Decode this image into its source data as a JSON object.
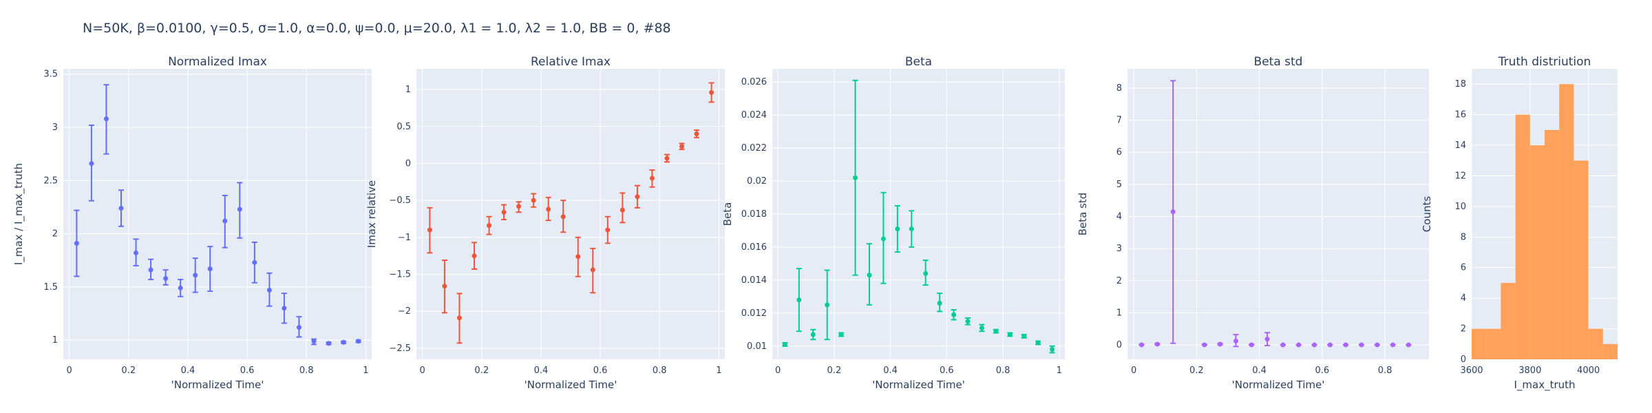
{
  "suptitle": "N=50K, β=0.0100, γ=0.5, σ=1.0,  α=0.0, ψ=0.0, μ=20.0, λ1 = 1.0, λ2 = 1.0, BB = 0, #88",
  "colors": {
    "plot_bg": "#e5ecf6",
    "grid": "#ffffff",
    "text": "#2a3f5f",
    "series1": "#636efa",
    "series2": "#ef553b",
    "series3": "#00cc96",
    "series4": "#ab63fa",
    "hist": "#ffa15a"
  },
  "chart_data": [
    {
      "type": "scatter",
      "title": "Normalized Imax",
      "xlabel": "'Normalized Time'",
      "ylabel": "I_max / I_max_truth",
      "xlim": [
        -0.02,
        1.02
      ],
      "ylim": [
        0.82,
        3.55
      ],
      "xticks": [
        0,
        0.2,
        0.4,
        0.6,
        0.8,
        1
      ],
      "xtick_labels": [
        "0",
        "0.2",
        "0.4",
        "0.6",
        "0.8",
        "1"
      ],
      "yticks": [
        1,
        1.5,
        2,
        2.5,
        3,
        3.5
      ],
      "ytick_labels": [
        "1",
        "1.5",
        "2",
        "2.5",
        "3",
        "3.5"
      ],
      "color_key": "series1",
      "x": [
        0.025,
        0.075,
        0.125,
        0.175,
        0.225,
        0.275,
        0.325,
        0.375,
        0.425,
        0.475,
        0.525,
        0.575,
        0.625,
        0.675,
        0.725,
        0.775,
        0.825,
        0.875,
        0.925,
        0.975
      ],
      "y": [
        1.91,
        2.66,
        3.08,
        2.24,
        1.82,
        1.66,
        1.58,
        1.49,
        1.61,
        1.67,
        2.12,
        2.23,
        1.73,
        1.47,
        1.3,
        1.12,
        0.99,
        0.97,
        0.98,
        0.99
      ],
      "err_low": [
        1.6,
        2.31,
        2.75,
        2.07,
        1.7,
        1.57,
        1.52,
        1.41,
        1.45,
        1.46,
        1.87,
        1.96,
        1.54,
        1.32,
        1.16,
        1.03,
        0.96,
        0.96,
        0.97,
        0.98
      ],
      "err_high": [
        2.22,
        3.02,
        3.4,
        2.41,
        1.95,
        1.76,
        1.66,
        1.57,
        1.77,
        1.88,
        2.36,
        2.48,
        1.92,
        1.63,
        1.44,
        1.22,
        1.01,
        0.98,
        0.99,
        1.0
      ]
    },
    {
      "type": "scatter",
      "title": "Relative Imax",
      "xlabel": "'Normalized Time'",
      "ylabel": "Imax relative",
      "xlim": [
        -0.02,
        1.02
      ],
      "ylim": [
        -2.65,
        1.28
      ],
      "xticks": [
        0,
        0.2,
        0.4,
        0.6,
        0.8,
        1
      ],
      "xtick_labels": [
        "0",
        "0.2",
        "0.4",
        "0.6",
        "0.8",
        "1"
      ],
      "yticks": [
        -2.5,
        -2,
        -1.5,
        -1,
        -0.5,
        0,
        0.5,
        1
      ],
      "ytick_labels": [
        "−2.5",
        "−2",
        "−1.5",
        "−1",
        "−0.5",
        "0",
        "0.5",
        "1"
      ],
      "color_key": "series2",
      "x": [
        0.025,
        0.075,
        0.125,
        0.175,
        0.225,
        0.275,
        0.325,
        0.375,
        0.425,
        0.475,
        0.525,
        0.575,
        0.625,
        0.675,
        0.725,
        0.775,
        0.825,
        0.875,
        0.925,
        0.975
      ],
      "y": [
        -0.9,
        -1.66,
        -2.09,
        -1.25,
        -0.84,
        -0.66,
        -0.58,
        -0.5,
        -0.62,
        -0.72,
        -1.26,
        -1.44,
        -0.9,
        -0.63,
        -0.45,
        -0.2,
        0.07,
        0.23,
        0.4,
        0.96
      ],
      "err_low": [
        -1.21,
        -2.02,
        -2.43,
        -1.43,
        -0.96,
        -0.76,
        -0.66,
        -0.59,
        -0.77,
        -0.93,
        -1.53,
        -1.75,
        -1.08,
        -0.8,
        -0.6,
        -0.32,
        0.02,
        0.19,
        0.35,
        0.83
      ],
      "err_high": [
        -0.6,
        -1.31,
        -1.76,
        -1.07,
        -0.72,
        -0.56,
        -0.52,
        -0.41,
        -0.46,
        -0.5,
        -1.0,
        -1.15,
        -0.72,
        -0.4,
        -0.3,
        -0.09,
        0.12,
        0.27,
        0.45,
        1.09
      ]
    },
    {
      "type": "scatter",
      "title": "Beta",
      "xlabel": "'Normalized Time'",
      "ylabel": "Beta",
      "xlim": [
        -0.02,
        1.02
      ],
      "ylim": [
        0.0092,
        0.0268
      ],
      "xticks": [
        0,
        0.2,
        0.4,
        0.6,
        0.8,
        1
      ],
      "xtick_labels": [
        "0",
        "0.2",
        "0.4",
        "0.6",
        "0.8",
        "1"
      ],
      "yticks": [
        0.01,
        0.012,
        0.014,
        0.016,
        0.018,
        0.02,
        0.022,
        0.024,
        0.026
      ],
      "ytick_labels": [
        "0.01",
        "0.012",
        "0.014",
        "0.016",
        "0.018",
        "0.02",
        "0.022",
        "0.024",
        "0.026"
      ],
      "color_key": "series3",
      "x": [
        0.025,
        0.075,
        0.125,
        0.175,
        0.225,
        0.275,
        0.325,
        0.375,
        0.425,
        0.475,
        0.525,
        0.575,
        0.625,
        0.675,
        0.725,
        0.775,
        0.825,
        0.875,
        0.925,
        0.975
      ],
      "y": [
        0.0101,
        0.0128,
        0.0107,
        0.0125,
        0.0107,
        0.0202,
        0.0143,
        0.0165,
        0.0171,
        0.0171,
        0.0144,
        0.0126,
        0.0119,
        0.0115,
        0.0111,
        0.0109,
        0.0107,
        0.0106,
        0.0102,
        0.0098
      ],
      "err_low": [
        0.01,
        0.0109,
        0.0104,
        0.0104,
        0.0106,
        0.0143,
        0.0125,
        0.0138,
        0.0157,
        0.016,
        0.0137,
        0.0121,
        0.0116,
        0.0113,
        0.0109,
        0.0108,
        0.0106,
        0.0105,
        0.0101,
        0.0096
      ],
      "err_high": [
        0.0102,
        0.0147,
        0.011,
        0.0146,
        0.0108,
        0.0261,
        0.0162,
        0.0193,
        0.0185,
        0.0182,
        0.0152,
        0.0132,
        0.0122,
        0.0117,
        0.0113,
        0.011,
        0.0108,
        0.0107,
        0.0103,
        0.01
      ]
    },
    {
      "type": "scatter",
      "title": "Beta std",
      "xlabel": "'Normalized Time'",
      "ylabel": "Beta std",
      "xlim": [
        -0.02,
        0.94
      ],
      "ylim": [
        -0.45,
        8.6
      ],
      "xticks": [
        0,
        0.2,
        0.4,
        0.6,
        0.8
      ],
      "xtick_labels": [
        "0",
        "0.2",
        "0.4",
        "0.6",
        "0.8"
      ],
      "yticks": [
        0,
        1,
        2,
        3,
        4,
        5,
        6,
        7,
        8
      ],
      "ytick_labels": [
        "0",
        "1",
        "2",
        "3",
        "4",
        "5",
        "6",
        "7",
        "8"
      ],
      "color_key": "series4",
      "x": [
        0.025,
        0.075,
        0.125,
        0.225,
        0.275,
        0.325,
        0.375,
        0.425,
        0.475,
        0.525,
        0.575,
        0.625,
        0.675,
        0.725,
        0.775,
        0.825,
        0.875
      ],
      "y": [
        0.0,
        0.02,
        4.15,
        0.0,
        0.02,
        0.12,
        0.0,
        0.18,
        0.0,
        0.0,
        0.0,
        0.0,
        0.0,
        0.0,
        0.0,
        0.0,
        0.0
      ],
      "err_low": [
        0.0,
        0.01,
        0.05,
        0.0,
        0.0,
        -0.05,
        0.0,
        -0.02,
        0.0,
        0.0,
        0.0,
        0.0,
        0.0,
        0.0,
        0.0,
        0.0,
        0.0
      ],
      "err_high": [
        0.02,
        0.04,
        8.23,
        0.02,
        0.05,
        0.32,
        0.02,
        0.38,
        0.0,
        0.0,
        0.0,
        0.0,
        0.0,
        0.0,
        0.0,
        0.0,
        0.0
      ]
    },
    {
      "type": "bar",
      "title": "Truth distriution",
      "xlabel": "I_max_truth",
      "ylabel": "Counts",
      "xlim": [
        3600,
        4100
      ],
      "ylim": [
        0,
        19
      ],
      "xticks": [
        3600,
        3800,
        4000
      ],
      "xtick_labels": [
        "3600",
        "3800",
        "4000"
      ],
      "yticks": [
        0,
        2,
        4,
        6,
        8,
        10,
        12,
        14,
        16,
        18
      ],
      "ytick_labels": [
        "0",
        "2",
        "4",
        "6",
        "8",
        "10",
        "12",
        "14",
        "16",
        "18"
      ],
      "color_key": "hist",
      "bin_edges": [
        3600,
        3650,
        3700,
        3750,
        3800,
        3850,
        3900,
        3950,
        4000,
        4050,
        4100
      ],
      "counts": [
        2,
        2,
        5,
        16,
        14,
        15,
        18,
        13,
        2,
        1
      ]
    }
  ]
}
